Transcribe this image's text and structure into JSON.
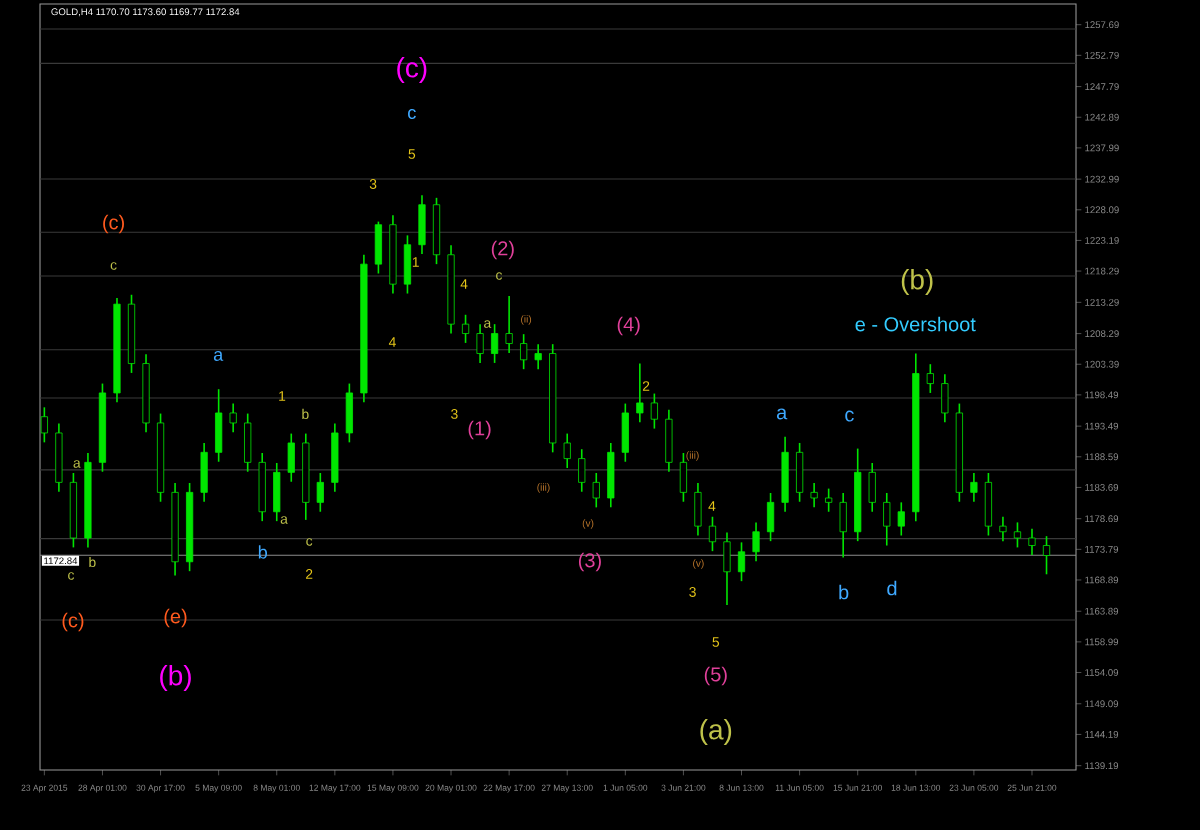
{
  "chart_data": {
    "type": "candlestick",
    "title": "GOLD,H4  1170.70 1173.60 1169.77 1172.84",
    "color": "#00e600",
    "categories": [
      "23 Apr 2015",
      null,
      null,
      null,
      "28 Apr 01:00",
      null,
      null,
      null,
      "30 Apr 17:00",
      null,
      null,
      null,
      "5 May 09:00",
      null,
      null,
      null,
      "8 May 01:00",
      null,
      null,
      null,
      "12 May 17:00",
      null,
      null,
      null,
      "15 May 09:00",
      null,
      null,
      null,
      "20 May 01:00",
      null,
      null,
      null,
      "22 May 17:00",
      null,
      null,
      null,
      "27 May 13:00",
      null,
      null,
      null,
      "1 Jun 05:00",
      null,
      null,
      null,
      "3 Jun 21:00",
      null,
      null,
      null,
      "8 Jun 13:00",
      null,
      null,
      null,
      "11 Jun 05:00",
      null,
      null,
      null,
      "15 Jun 21:00",
      null,
      null,
      null,
      "18 Jun 13:00",
      null,
      null,
      null,
      "23 Jun 05:00",
      null,
      null,
      null,
      "25 Jun 21:00",
      null
    ],
    "ohlc": [
      [
        1195.0,
        1196.5,
        1190.9,
        1192.4
      ],
      [
        1192.4,
        1193.9,
        1183.0,
        1184.5
      ],
      [
        1184.5,
        1186.0,
        1174.1,
        1175.6
      ],
      [
        1175.6,
        1189.2,
        1174.1,
        1187.7
      ],
      [
        1187.7,
        1200.3,
        1186.2,
        1198.8
      ],
      [
        1198.8,
        1214.0,
        1197.3,
        1213.0
      ],
      [
        1213.0,
        1214.5,
        1202.0,
        1203.5
      ],
      [
        1203.5,
        1205.0,
        1192.5,
        1194.0
      ],
      [
        1194.0,
        1195.5,
        1181.4,
        1182.9
      ],
      [
        1182.9,
        1184.4,
        1169.6,
        1171.8
      ],
      [
        1171.8,
        1184.4,
        1170.3,
        1182.9
      ],
      [
        1182.9,
        1190.8,
        1181.4,
        1189.3
      ],
      [
        1189.3,
        1199.4,
        1187.8,
        1195.6
      ],
      [
        1195.6,
        1197.1,
        1192.5,
        1194.0
      ],
      [
        1194.0,
        1195.5,
        1186.2,
        1187.7
      ],
      [
        1187.7,
        1189.2,
        1178.3,
        1179.8
      ],
      [
        1179.8,
        1187.6,
        1178.3,
        1186.1
      ],
      [
        1186.1,
        1192.3,
        1184.6,
        1190.8
      ],
      [
        1190.8,
        1192.3,
        1178.5,
        1181.3
      ],
      [
        1181.3,
        1186.0,
        1179.8,
        1184.5
      ],
      [
        1184.5,
        1193.9,
        1183.0,
        1192.4
      ],
      [
        1192.4,
        1200.3,
        1190.9,
        1198.8
      ],
      [
        1198.8,
        1220.9,
        1197.3,
        1219.4
      ],
      [
        1219.4,
        1226.2,
        1217.9,
        1225.7
      ],
      [
        1225.7,
        1227.2,
        1214.7,
        1216.2
      ],
      [
        1216.2,
        1224.0,
        1214.7,
        1222.5
      ],
      [
        1222.5,
        1230.4,
        1221.0,
        1228.9
      ],
      [
        1228.9,
        1230.0,
        1219.4,
        1220.9
      ],
      [
        1220.9,
        1222.4,
        1208.3,
        1209.8
      ],
      [
        1209.8,
        1211.3,
        1206.8,
        1208.3
      ],
      [
        1208.3,
        1209.8,
        1203.6,
        1205.1
      ],
      [
        1205.1,
        1209.8,
        1203.6,
        1208.3
      ],
      [
        1208.3,
        1214.3,
        1205.2,
        1206.7
      ],
      [
        1206.7,
        1208.2,
        1202.6,
        1204.1
      ],
      [
        1204.1,
        1206.6,
        1202.6,
        1205.1
      ],
      [
        1205.1,
        1206.6,
        1189.3,
        1190.8
      ],
      [
        1190.8,
        1192.3,
        1186.8,
        1188.3
      ],
      [
        1188.3,
        1189.8,
        1183.0,
        1184.5
      ],
      [
        1184.5,
        1186.0,
        1180.5,
        1182.0
      ],
      [
        1182.0,
        1190.8,
        1180.5,
        1189.3
      ],
      [
        1189.3,
        1197.1,
        1187.8,
        1195.6
      ],
      [
        1195.6,
        1203.5,
        1194.1,
        1197.2
      ],
      [
        1197.2,
        1198.7,
        1193.1,
        1194.6
      ],
      [
        1194.6,
        1196.1,
        1186.2,
        1187.7
      ],
      [
        1187.7,
        1189.2,
        1181.4,
        1182.9
      ],
      [
        1182.9,
        1184.4,
        1176.0,
        1177.5
      ],
      [
        1177.5,
        1179.0,
        1173.5,
        1175.0
      ],
      [
        1175.0,
        1176.5,
        1164.9,
        1170.2
      ],
      [
        1170.2,
        1174.9,
        1168.7,
        1173.4
      ],
      [
        1173.4,
        1178.1,
        1171.9,
        1176.6
      ],
      [
        1176.6,
        1182.8,
        1175.1,
        1181.3
      ],
      [
        1181.3,
        1191.8,
        1179.8,
        1189.3
      ],
      [
        1189.3,
        1190.8,
        1181.4,
        1182.9
      ],
      [
        1182.9,
        1184.4,
        1180.5,
        1182.0
      ],
      [
        1182.0,
        1183.5,
        1179.8,
        1181.3
      ],
      [
        1181.3,
        1182.8,
        1172.5,
        1176.6
      ],
      [
        1176.6,
        1189.9,
        1175.1,
        1186.1
      ],
      [
        1186.1,
        1187.6,
        1179.8,
        1181.3
      ],
      [
        1181.3,
        1182.8,
        1174.4,
        1177.5
      ],
      [
        1177.5,
        1181.3,
        1176.0,
        1179.8
      ],
      [
        1179.8,
        1205.1,
        1178.3,
        1201.9
      ],
      [
        1201.9,
        1203.4,
        1198.8,
        1200.3
      ],
      [
        1200.3,
        1201.8,
        1194.1,
        1195.6
      ],
      [
        1195.6,
        1197.1,
        1181.4,
        1182.9
      ],
      [
        1182.9,
        1186.0,
        1181.4,
        1184.5
      ],
      [
        1184.5,
        1186.0,
        1176.0,
        1177.5
      ],
      [
        1177.5,
        1179.0,
        1175.1,
        1176.6
      ],
      [
        1176.6,
        1178.1,
        1174.1,
        1175.6
      ],
      [
        1175.6,
        1177.1,
        1172.9,
        1174.4
      ],
      [
        1174.4,
        1175.9,
        1169.8,
        1172.8
      ]
    ],
    "ylim": [
      1138.5,
      1261.0
    ],
    "yticks": [
      1139.19,
      1144.19,
      1149.09,
      1154.09,
      1158.99,
      1163.89,
      1168.89,
      1173.79,
      1178.69,
      1183.69,
      1188.59,
      1193.49,
      1198.49,
      1203.39,
      1208.29,
      1213.29,
      1218.29,
      1223.19,
      1228.09,
      1232.99,
      1237.99,
      1242.89,
      1247.79,
      1252.79,
      1257.69
    ],
    "ref_lines": [
      {
        "axis": "y",
        "value": 1257.0,
        "color": "#3a3a3a"
      },
      {
        "axis": "y",
        "value": 1251.5,
        "color": "#3a3a3a"
      },
      {
        "axis": "y",
        "value": 1233.0,
        "color": "#3a3a3a"
      },
      {
        "axis": "y",
        "value": 1224.5,
        "color": "#3a3a3a"
      },
      {
        "axis": "y",
        "value": 1217.5,
        "color": "#3a3a3a"
      },
      {
        "axis": "y",
        "value": 1205.7,
        "color": "#3a3a3a"
      },
      {
        "axis": "y",
        "value": 1198.0,
        "color": "#3a3a3a"
      },
      {
        "axis": "y",
        "value": 1186.5,
        "color": "#3a3a3a"
      },
      {
        "axis": "y",
        "value": 1175.5,
        "color": "#3a3a3a"
      },
      {
        "axis": "y",
        "value": 1162.5,
        "color": "#3a3a3a"
      },
      {
        "axis": "y",
        "value": 1172.84,
        "label": "1172.84",
        "color": "#8c8c8c"
      }
    ],
    "annotations": [
      "(c)",
      "c",
      "5",
      "3",
      "4",
      "1",
      "(2)",
      "c",
      "4",
      "a",
      "(c)",
      "c",
      "a",
      "1",
      "a",
      "b",
      "c",
      "(c)",
      "(e)",
      "(b)",
      "b",
      "a",
      "c",
      "b",
      "2",
      "(1)",
      "3",
      "(4)",
      "2",
      "(3)",
      "4",
      "3",
      "5",
      "(5)",
      "(a)",
      "a",
      "c",
      "b",
      "d",
      "(b)",
      "e - Overshoot",
      "(ii)",
      "(iii)",
      "(v)",
      "(iii)",
      "(v)"
    ]
  }
}
